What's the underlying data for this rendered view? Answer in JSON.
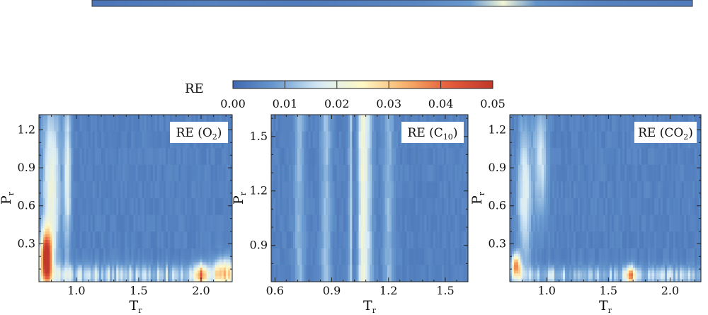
{
  "chart_data": {
    "type": "heatmap",
    "colorbar": {
      "label": "RE",
      "min": 0.0,
      "max": 0.05,
      "ticks": [
        0.0,
        0.01,
        0.02,
        0.03,
        0.04,
        0.05
      ],
      "tick_labels": [
        "0.00",
        "0.01",
        "0.02",
        "0.03",
        "0.04",
        "0.05"
      ],
      "colors": [
        "#4169b0",
        "#6a9bd0",
        "#d8ecf7",
        "#fff9c4",
        "#f8b06a",
        "#e55a3a",
        "#c0392b"
      ]
    },
    "top_strip": {
      "note": "partial colormap strip visible at the top edge",
      "hot_x_range": [
        0.63,
        0.74
      ]
    },
    "panels": [
      {
        "id": "o2",
        "title_prefix": "RE (O",
        "title_sub": "2",
        "title_suffix": ")",
        "xlabel_main": "T",
        "xlabel_sub": "r",
        "ylabel_main": "P",
        "ylabel_sub": "r",
        "xlim": [
          0.7,
          2.25
        ],
        "ylim": [
          0.0,
          1.32
        ],
        "xticks": [
          1.0,
          1.5,
          2.0
        ],
        "xtick_labels": [
          "1.0",
          "1.5",
          "2.0"
        ],
        "yticks": [
          0.3,
          0.6,
          0.9,
          1.2
        ],
        "ytick_labels": [
          "0.3",
          "0.6",
          "0.9",
          "1.2"
        ],
        "features": [
          {
            "kind": "hotspot",
            "x": 0.76,
            "y": 0.19,
            "value": 0.049,
            "sx": 0.03,
            "sy": 0.14
          },
          {
            "kind": "blob",
            "x": 0.8,
            "y": 0.75,
            "value": 0.017,
            "sx": 0.05,
            "sy": 0.5
          },
          {
            "kind": "blob",
            "x": 0.93,
            "y": 0.85,
            "value": 0.015,
            "sx": 0.02,
            "sy": 0.45
          },
          {
            "kind": "blob",
            "x": 2.0,
            "y": 0.05,
            "value": 0.026,
            "sx": 0.03,
            "sy": 0.06
          },
          {
            "kind": "blob",
            "x": 2.18,
            "y": 0.08,
            "value": 0.018,
            "sx": 0.06,
            "sy": 0.08
          },
          {
            "kind": "band",
            "y": 0.05,
            "value": 0.01,
            "sy": 0.06
          }
        ]
      },
      {
        "id": "c10",
        "title_prefix": "RE (C",
        "title_sub": "10",
        "title_suffix": ")",
        "xlabel_main": "T",
        "xlabel_sub": "r",
        "ylabel_main": "P",
        "ylabel_sub": "r",
        "xlim": [
          0.58,
          1.62
        ],
        "ylim": [
          0.7,
          1.62
        ],
        "xticks": [
          0.6,
          0.9,
          1.2,
          1.5
        ],
        "xtick_labels": [
          "0.6",
          "0.9",
          "1.2",
          "1.5"
        ],
        "yticks": [
          0.9,
          1.2,
          1.5
        ],
        "ytick_labels": [
          "0.9",
          "1.2",
          "1.5"
        ],
        "features": [
          {
            "kind": "vstripe",
            "x": 0.997,
            "value": 0.018,
            "sx": 0.004
          },
          {
            "kind": "vstripe",
            "x": 1.06,
            "value": 0.014,
            "sx": 0.015
          },
          {
            "kind": "vstripe",
            "x": 1.09,
            "value": 0.01,
            "sx": 0.02
          },
          {
            "kind": "vstripe",
            "x": 0.87,
            "value": 0.008,
            "sx": 0.02
          },
          {
            "kind": "vstripe",
            "x": 0.73,
            "value": 0.007,
            "sx": 0.02
          },
          {
            "kind": "vstripe",
            "x": 1.2,
            "value": 0.007,
            "sx": 0.02
          }
        ]
      },
      {
        "id": "co2",
        "title_prefix": "RE (CO",
        "title_sub": "2",
        "title_suffix": ")",
        "xlabel_main": "T",
        "xlabel_sub": "r",
        "ylabel_main": "P",
        "ylabel_sub": "r",
        "xlim": [
          0.7,
          2.25
        ],
        "ylim": [
          0.0,
          1.32
        ],
        "xticks": [
          1.0,
          1.5,
          2.0
        ],
        "xtick_labels": [
          "1.0",
          "1.5",
          "2.0"
        ],
        "yticks": [
          0.3,
          0.6,
          0.9,
          1.2
        ],
        "ytick_labels": [
          "0.3",
          "0.6",
          "0.9",
          "1.2"
        ],
        "features": [
          {
            "kind": "hotspot",
            "x": 0.75,
            "y": 0.13,
            "value": 0.03,
            "sx": 0.025,
            "sy": 0.06
          },
          {
            "kind": "blob",
            "x": 0.82,
            "y": 0.7,
            "value": 0.014,
            "sx": 0.04,
            "sy": 0.4
          },
          {
            "kind": "blob",
            "x": 0.95,
            "y": 0.95,
            "value": 0.012,
            "sx": 0.04,
            "sy": 0.3
          },
          {
            "kind": "blob",
            "x": 1.68,
            "y": 0.05,
            "value": 0.024,
            "sx": 0.03,
            "sy": 0.05
          },
          {
            "kind": "band",
            "y": 0.05,
            "value": 0.009,
            "sy": 0.05
          }
        ]
      }
    ]
  }
}
